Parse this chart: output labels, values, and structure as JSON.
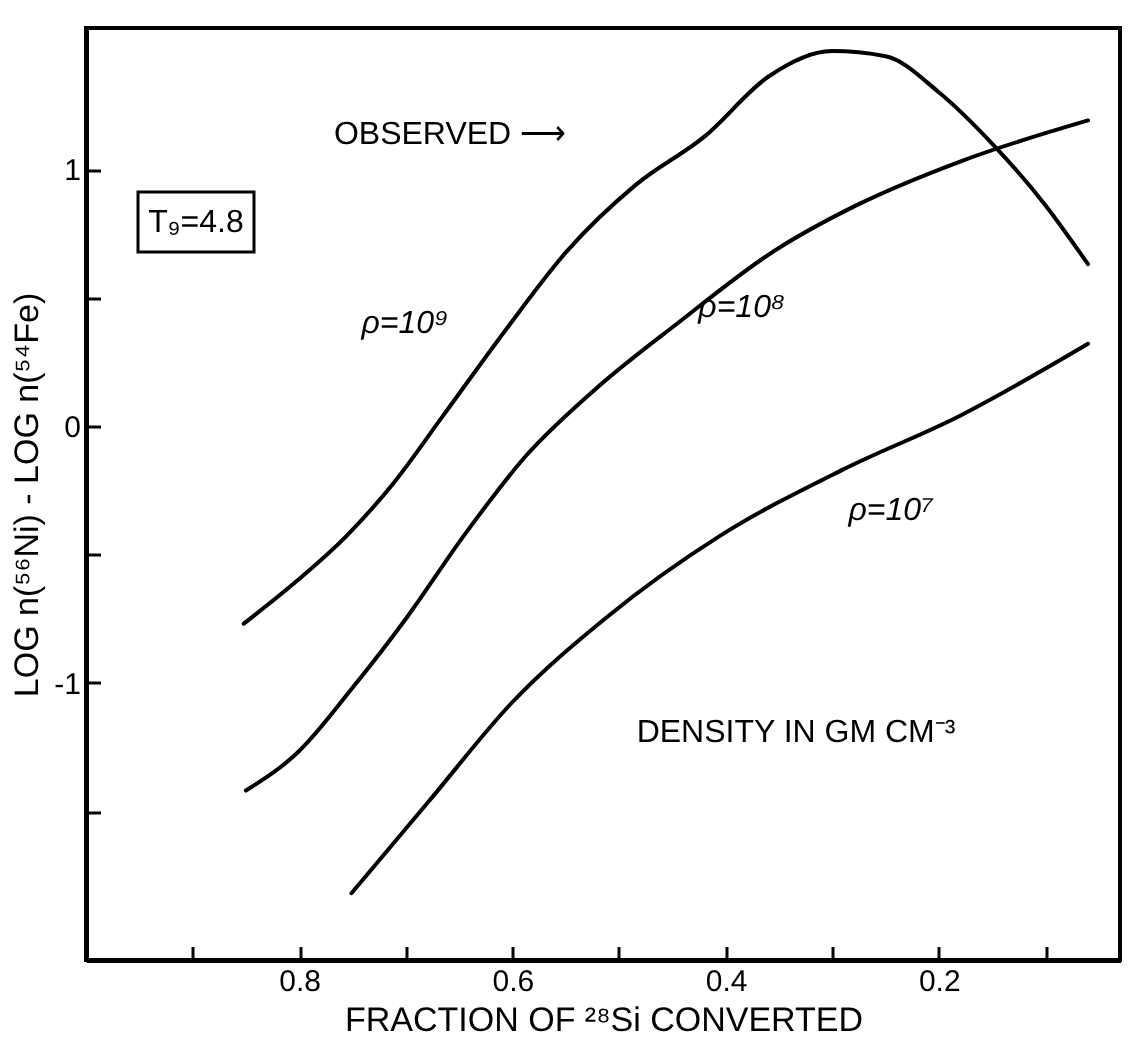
{
  "chart_data": {
    "type": "line",
    "xlabel": "FRACTION OF ²⁸Si CONVERTED",
    "ylabel": "LOG n(⁵⁶Ni) - LOG n(⁵⁴Fe)",
    "annotations": [
      "OBSERVED ⟶",
      "T₉=4.8",
      "DENSITY IN GM CM⁻³"
    ],
    "xlim": [
      1.0,
      0.03
    ],
    "ylim": [
      -2.08,
      1.55
    ],
    "xticks": [
      {
        "value": 0.9,
        "label": null
      },
      0.8,
      {
        "value": 0.7,
        "label": null
      },
      0.6,
      {
        "value": 0.5,
        "label": null
      },
      0.4,
      {
        "value": 0.3,
        "label": null
      },
      0.2,
      {
        "value": 0.1,
        "label": null
      }
    ],
    "yticks": [
      {
        "value": -1.5,
        "label": null
      },
      -1,
      {
        "value": -0.5,
        "label": null
      },
      0,
      {
        "value": 0.5,
        "label": null
      },
      1
    ],
    "line_style": "solid",
    "series": [
      {
        "name": "ρ=10⁹",
        "color": "#000000",
        "x": [
          0.852,
          0.804,
          0.756,
          0.711,
          0.665,
          0.607,
          0.549,
          0.484,
          0.419,
          0.36,
          0.3,
          0.25,
          0.2,
          0.15,
          0.1,
          0.06
        ],
        "values": [
          -0.77,
          -0.61,
          -0.43,
          -0.22,
          0.04,
          0.37,
          0.68,
          0.94,
          1.13,
          1.36,
          1.46,
          1.44,
          1.3,
          1.1,
          0.86,
          0.63
        ]
      },
      {
        "name": "ρ=10⁸",
        "color": "#000000",
        "x": [
          0.85,
          0.801,
          0.75,
          0.698,
          0.646,
          0.588,
          0.523,
          0.445,
          0.355,
          0.277,
          0.18,
          0.06
        ],
        "values": [
          -1.42,
          -1.27,
          -1.02,
          -0.74,
          -0.43,
          -0.12,
          0.14,
          0.4,
          0.68,
          0.86,
          1.03,
          1.19
        ]
      },
      {
        "name": "ρ=10⁷",
        "color": "#000000",
        "x": [
          0.751,
          0.678,
          0.601,
          0.51,
          0.406,
          0.29,
          0.18,
          0.06
        ],
        "values": [
          -1.82,
          -1.46,
          -1.08,
          -0.74,
          -0.43,
          -0.17,
          0.04,
          0.32
        ]
      }
    ]
  }
}
